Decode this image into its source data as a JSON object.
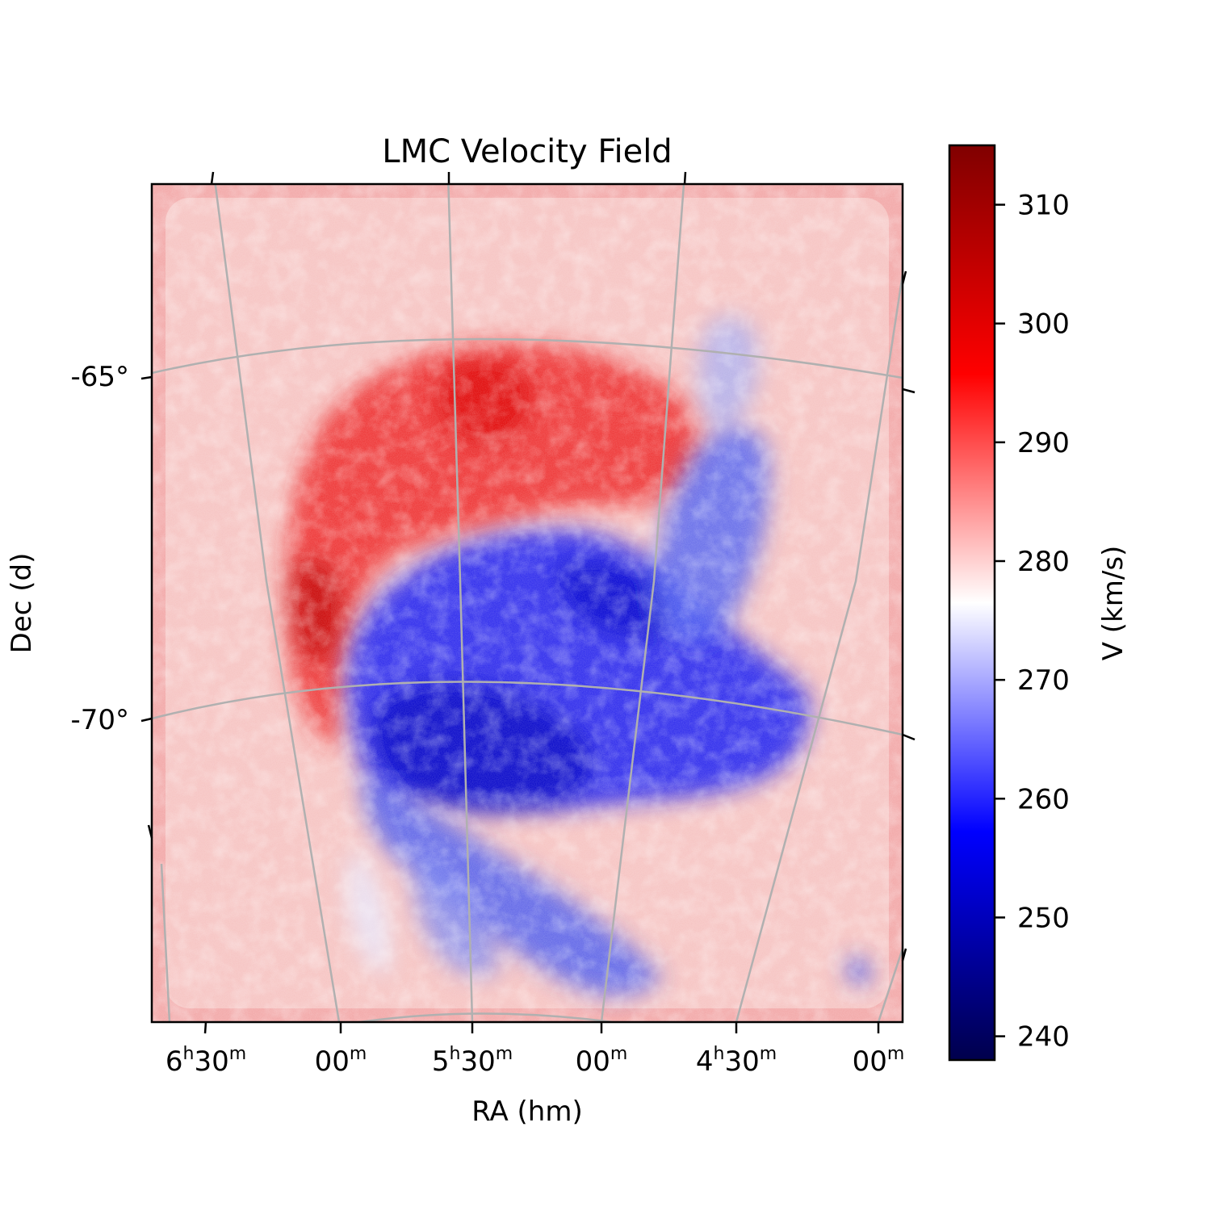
{
  "chart_data": {
    "type": "heatmap",
    "title": "LMC Velocity Field",
    "xlabel": "RA (hm)",
    "ylabel": "Dec (d)",
    "projection": "sky (RA/Dec) with curved coordinate grid",
    "grid": true,
    "x_ticks": [
      {
        "h": "6",
        "m": "30"
      },
      {
        "h": "",
        "m": "00"
      },
      {
        "h": "5",
        "m": "30"
      },
      {
        "h": "",
        "m": "00"
      },
      {
        "h": "4",
        "m": "30"
      },
      {
        "h": "",
        "m": "00"
      }
    ],
    "y_ticks": [
      "-65°",
      "-70°"
    ],
    "dec_lines_deg": [
      -65,
      -70
    ],
    "ra_lines_hm": [
      "6h30m",
      "6h00m",
      "5h30m",
      "5h00m",
      "4h30m",
      "4h00m"
    ],
    "colorbar": {
      "label": "V (km/s)",
      "colormap": "seismic",
      "vmin": 238,
      "vmax": 315,
      "ticks": [
        240,
        250,
        260,
        270,
        280,
        290,
        300,
        310
      ],
      "placement": "right",
      "colors": [
        "#00004c",
        "#0000ff",
        "#ffffff",
        "#ff0000",
        "#800000"
      ]
    },
    "velocity_regions": [
      {
        "description": "background",
        "approx_velocity": 288
      },
      {
        "description": "northern arc (redshifted)",
        "approx_velocity": 300
      },
      {
        "description": "central body and southern streams (blueshifted)",
        "approx_velocity": 262
      }
    ]
  }
}
